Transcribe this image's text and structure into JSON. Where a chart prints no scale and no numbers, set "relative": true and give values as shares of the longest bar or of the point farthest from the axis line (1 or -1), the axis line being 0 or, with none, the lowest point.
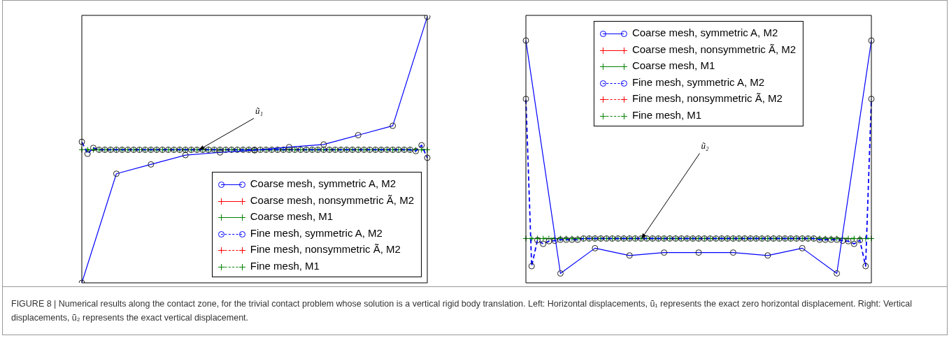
{
  "chart_data": [
    {
      "type": "line",
      "relative": true,
      "tick_labels": false,
      "legend": "bottom right",
      "categories": [
        null,
        null,
        null,
        null,
        null,
        null,
        null,
        null,
        null,
        null,
        null,
        null,
        null,
        null,
        null,
        null,
        null,
        null,
        null,
        null,
        null,
        null,
        null,
        null,
        null,
        null,
        null,
        null,
        null,
        null,
        null,
        null,
        null,
        null,
        null,
        null,
        null,
        null,
        null,
        null,
        null,
        null,
        null,
        null,
        null,
        null,
        null,
        null,
        null,
        null,
        null,
        null,
        null,
        null,
        null,
        null,
        null,
        null,
        null,
        null,
        null
      ],
      "series": [
        {
          "name": "Coarse mesh, symmetric A, M2",
          "color": "#0000ff",
          "marker": "circle",
          "line_style": "solid",
          "values": [
            0,
            null,
            null,
            null,
            null,
            null,
            0.41,
            null,
            null,
            null,
            null,
            null,
            0.445,
            null,
            null,
            null,
            null,
            null,
            0.48,
            null,
            null,
            null,
            null,
            null,
            0.49,
            null,
            null,
            null,
            null,
            null,
            0.498,
            null,
            null,
            null,
            null,
            null,
            0.51,
            null,
            null,
            null,
            null,
            null,
            0.52,
            null,
            null,
            null,
            null,
            null,
            0.555,
            null,
            null,
            null,
            null,
            null,
            0.59,
            null,
            null,
            null,
            null,
            null,
            1
          ]
        },
        {
          "name": "Coarse mesh, nonsymmetric Ã, M2",
          "color": "#ff0000",
          "marker": "cross",
          "line_style": "solid",
          "values": [
            null,
            null,
            null,
            null,
            null,
            null,
            null,
            null,
            null,
            null,
            null,
            null,
            null,
            null,
            null,
            null,
            null,
            null,
            null,
            null,
            null,
            null,
            null,
            null,
            null,
            null,
            null,
            null,
            null,
            null,
            null,
            null,
            null,
            null,
            null,
            null,
            null,
            null,
            null,
            null,
            null,
            null,
            null,
            null,
            null,
            null,
            null,
            null,
            null,
            null,
            null,
            null,
            null,
            null,
            null,
            null,
            null,
            null,
            null,
            null,
            null
          ]
        },
        {
          "name": "Coarse mesh, M1",
          "color": "#008000",
          "marker": "cross",
          "line_style": "solid",
          "values": [
            null,
            null,
            null,
            null,
            null,
            null,
            null,
            null,
            null,
            null,
            null,
            null,
            null,
            null,
            null,
            null,
            null,
            null,
            null,
            null,
            null,
            null,
            null,
            null,
            null,
            null,
            null,
            null,
            null,
            null,
            null,
            null,
            null,
            null,
            null,
            null,
            null,
            null,
            null,
            null,
            null,
            null,
            null,
            null,
            null,
            null,
            null,
            null,
            null,
            null,
            null,
            null,
            null,
            null,
            null,
            null,
            null,
            null,
            null,
            null,
            null
          ]
        },
        {
          "name": "Fine mesh, symmetric A, M2",
          "color": "#0000ff",
          "marker": "circle",
          "line_style": "dashed",
          "values": [
            0.53,
            0.485,
            0.507,
            0.5,
            0.5,
            0.5,
            0.5,
            0.5,
            0.5,
            0.5,
            0.5,
            0.5,
            0.5,
            0.5,
            0.5,
            0.5,
            0.5,
            0.5,
            0.5,
            0.5,
            0.5,
            0.5,
            0.5,
            0.5,
            0.5,
            0.5,
            0.5,
            0.5,
            0.5,
            0.5,
            0.5,
            0.5,
            0.5,
            0.5,
            0.5,
            0.5,
            0.5,
            0.5,
            0.5,
            0.5,
            0.5,
            0.5,
            0.5,
            0.5,
            0.5,
            0.5,
            0.5,
            0.5,
            0.5,
            0.5,
            0.5,
            0.5,
            0.5,
            0.5,
            0.5,
            0.5,
            0.5,
            0.5,
            0.495,
            0.517,
            0.47
          ]
        },
        {
          "name": "Fine mesh, nonsymmetric Ã, M2",
          "color": "#ff0000",
          "marker": "cross",
          "line_style": "dashed",
          "values": [
            null,
            null,
            null,
            null,
            null,
            null,
            null,
            null,
            null,
            null,
            null,
            null,
            null,
            null,
            null,
            null,
            null,
            null,
            null,
            null,
            null,
            null,
            null,
            null,
            null,
            null,
            null,
            null,
            null,
            null,
            null,
            null,
            null,
            null,
            null,
            null,
            null,
            null,
            null,
            null,
            null,
            null,
            null,
            null,
            null,
            null,
            null,
            null,
            null,
            null,
            null,
            null,
            null,
            null,
            null,
            null,
            null,
            null,
            null,
            null,
            null
          ]
        },
        {
          "name": "Fine mesh, M1",
          "color": "#008000",
          "marker": "cross",
          "line_style": "dashed",
          "values": [
            0.5,
            0.5,
            0.5,
            0.5,
            0.5,
            0.5,
            0.5,
            0.5,
            0.5,
            0.5,
            0.5,
            0.5,
            0.5,
            0.5,
            0.5,
            0.5,
            0.5,
            0.5,
            0.5,
            0.5,
            0.5,
            0.5,
            0.5,
            0.5,
            0.5,
            0.5,
            0.5,
            0.5,
            0.5,
            0.5,
            0.5,
            0.5,
            0.5,
            0.5,
            0.5,
            0.5,
            0.5,
            0.5,
            0.5,
            0.5,
            0.5,
            0.5,
            0.5,
            0.5,
            0.5,
            0.5,
            0.5,
            0.5,
            0.5,
            0.5,
            0.5,
            0.5,
            0.5,
            0.5,
            0.5,
            0.5,
            0.5,
            0.5,
            0.5,
            0.5,
            0.5
          ]
        }
      ],
      "annotations": [
        "ũ₁",
        "FIGURE 8 | Numerical results along the contact zone, for the trivial contact problem whose solution is a vertical rigid body translation. Left: Horizontal displacements, ũ₁ represents the exact zero horizontal displacement. Right: Vertical displacements, ũ₂ represents the exact vertical displacement."
      ]
    },
    {
      "type": "line",
      "relative": true,
      "tick_labels": false,
      "legend": "top",
      "categories": [
        null,
        null,
        null,
        null,
        null,
        null,
        null,
        null,
        null,
        null,
        null,
        null,
        null,
        null,
        null,
        null,
        null,
        null,
        null,
        null,
        null,
        null,
        null,
        null,
        null,
        null,
        null,
        null,
        null,
        null,
        null,
        null,
        null,
        null,
        null,
        null,
        null,
        null,
        null,
        null,
        null,
        null,
        null,
        null,
        null,
        null,
        null,
        null,
        null,
        null,
        null,
        null,
        null,
        null,
        null,
        null,
        null,
        null,
        null,
        null,
        null
      ],
      "series": [
        {
          "name": "Coarse mesh, symmetric A, M2",
          "color": "#0000ff",
          "marker": "circle",
          "line_style": "solid",
          "values": [
            1,
            null,
            null,
            null,
            null,
            null,
            0.039,
            null,
            null,
            null,
            null,
            null,
            0.143,
            null,
            null,
            null,
            null,
            null,
            0.113,
            null,
            null,
            null,
            null,
            null,
            0.125,
            null,
            null,
            null,
            null,
            null,
            0.125,
            null,
            null,
            null,
            null,
            null,
            0.125,
            null,
            null,
            null,
            null,
            null,
            0.113,
            null,
            null,
            null,
            null,
            null,
            0.143,
            null,
            null,
            null,
            null,
            null,
            0.039,
            null,
            null,
            null,
            null,
            null,
            1
          ]
        },
        {
          "name": "Coarse mesh, nonsymmetric Ã, M2",
          "color": "#ff0000",
          "marker": "cross",
          "line_style": "solid",
          "values": [
            null,
            null,
            null,
            null,
            null,
            null,
            null,
            null,
            null,
            null,
            null,
            null,
            null,
            null,
            null,
            null,
            null,
            null,
            null,
            null,
            null,
            null,
            null,
            null,
            null,
            null,
            null,
            null,
            null,
            null,
            null,
            null,
            null,
            null,
            null,
            null,
            null,
            null,
            null,
            null,
            null,
            null,
            null,
            null,
            null,
            null,
            null,
            null,
            null,
            null,
            null,
            null,
            null,
            null,
            null,
            null,
            null,
            null,
            null,
            null,
            null
          ]
        },
        {
          "name": "Coarse mesh, M1",
          "color": "#008000",
          "marker": "cross",
          "line_style": "solid",
          "values": [
            null,
            null,
            null,
            null,
            null,
            null,
            null,
            null,
            null,
            null,
            null,
            null,
            null,
            null,
            null,
            null,
            null,
            null,
            null,
            null,
            null,
            null,
            null,
            null,
            null,
            null,
            null,
            null,
            null,
            null,
            null,
            null,
            null,
            null,
            null,
            null,
            null,
            null,
            null,
            null,
            null,
            null,
            null,
            null,
            null,
            null,
            null,
            null,
            null,
            null,
            null,
            null,
            null,
            null,
            null,
            null,
            null,
            null,
            null,
            null,
            null
          ]
        },
        {
          "name": "Fine mesh, symmetric A, M2",
          "color": "#0000ff",
          "marker": "circle",
          "line_style": "dashed",
          "values": [
            0.759,
            0.069,
            0.176,
            0.161,
            0.172,
            0.174,
            0.178,
            0.178,
            0.178,
            0.178,
            0.183,
            0.183,
            0.183,
            0.183,
            0.183,
            0.183,
            0.183,
            0.183,
            0.183,
            0.183,
            0.183,
            0.183,
            0.183,
            0.183,
            0.183,
            0.183,
            0.183,
            0.183,
            0.183,
            0.183,
            0.183,
            0.183,
            0.183,
            0.183,
            0.183,
            0.183,
            0.183,
            0.183,
            0.183,
            0.183,
            0.183,
            0.183,
            0.183,
            0.183,
            0.183,
            0.183,
            0.183,
            0.183,
            0.183,
            0.183,
            0.183,
            0.178,
            0.178,
            0.178,
            0.178,
            0.174,
            0.172,
            0.161,
            0.176,
            0.069,
            0.759
          ]
        },
        {
          "name": "Fine mesh, nonsymmetric Ã, M2",
          "color": "#ff0000",
          "marker": "cross",
          "line_style": "dashed",
          "values": [
            null,
            null,
            null,
            null,
            null,
            null,
            null,
            null,
            null,
            null,
            null,
            null,
            null,
            null,
            null,
            null,
            null,
            null,
            null,
            null,
            null,
            null,
            null,
            null,
            null,
            null,
            null,
            null,
            null,
            null,
            null,
            null,
            null,
            null,
            null,
            null,
            null,
            null,
            null,
            null,
            null,
            null,
            null,
            null,
            null,
            null,
            null,
            null,
            null,
            null,
            null,
            null,
            null,
            null,
            null,
            null,
            null,
            null,
            null,
            null,
            null
          ]
        },
        {
          "name": "Fine mesh, M1",
          "color": "#008000",
          "marker": "cross",
          "line_style": "dashed",
          "values": [
            0.183,
            0.183,
            0.183,
            0.183,
            0.183,
            0.183,
            0.183,
            0.183,
            0.183,
            0.183,
            0.183,
            0.183,
            0.183,
            0.183,
            0.183,
            0.183,
            0.183,
            0.183,
            0.183,
            0.183,
            0.183,
            0.183,
            0.183,
            0.183,
            0.183,
            0.183,
            0.183,
            0.183,
            0.183,
            0.183,
            0.183,
            0.183,
            0.183,
            0.183,
            0.183,
            0.183,
            0.183,
            0.183,
            0.183,
            0.183,
            0.183,
            0.183,
            0.183,
            0.183,
            0.183,
            0.183,
            0.183,
            0.183,
            0.183,
            0.183,
            0.183,
            0.183,
            0.183,
            0.183,
            0.183,
            0.183,
            0.183,
            0.183,
            0.183,
            0.183,
            0.183
          ]
        }
      ],
      "annotations": [
        "ũ₂"
      ]
    }
  ]
}
